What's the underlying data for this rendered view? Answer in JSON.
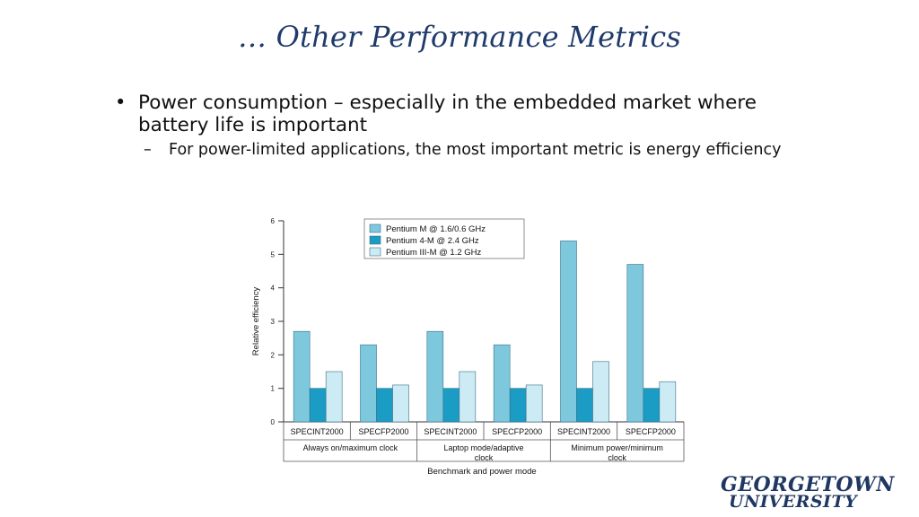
{
  "slide": {
    "title": "… Other Performance Metrics",
    "bullet1": "Power consumption – especially in the embedded market where battery life is important",
    "bullet1_marker": "•",
    "subbullet1": "For power-limited applications, the most important metric is energy efficiency",
    "subbullet1_marker": "–"
  },
  "logo": {
    "line1": "GEORGETOWN",
    "line2": "UNIVERSITY"
  },
  "colors": {
    "title": "#1f3b6b",
    "series": [
      "#7ec8de",
      "#1a9cc4",
      "#cdebf4"
    ]
  },
  "chart_data": {
    "type": "bar",
    "title": "",
    "xlabel": "Benchmark and power mode",
    "ylabel": "Relative efficiency",
    "ylim": [
      0,
      6
    ],
    "yticks": [
      0,
      1,
      2,
      3,
      4,
      5,
      6
    ],
    "grid": false,
    "legend": "top-center",
    "categories": [
      "SPECINT2000",
      "SPECFP2000",
      "SPECINT2000",
      "SPECFP2000",
      "SPECINT2000",
      "SPECFP2000"
    ],
    "groups": [
      {
        "label": "Always on/maximum clock",
        "span": 2
      },
      {
        "label": "Laptop mode/adaptive clock",
        "span": 2
      },
      {
        "label": "Minimum power/minimum clock",
        "span": 2
      }
    ],
    "series": [
      {
        "name": "Pentium M @ 1.6/0.6 GHz",
        "values": [
          2.7,
          2.3,
          2.7,
          2.3,
          5.4,
          4.7
        ]
      },
      {
        "name": "Pentium 4-M @ 2.4 GHz",
        "values": [
          1.0,
          1.0,
          1.0,
          1.0,
          1.0,
          1.0
        ]
      },
      {
        "name": "Pentium III-M @ 1.2 GHz",
        "values": [
          1.5,
          1.1,
          1.5,
          1.1,
          1.8,
          1.2
        ]
      }
    ]
  }
}
